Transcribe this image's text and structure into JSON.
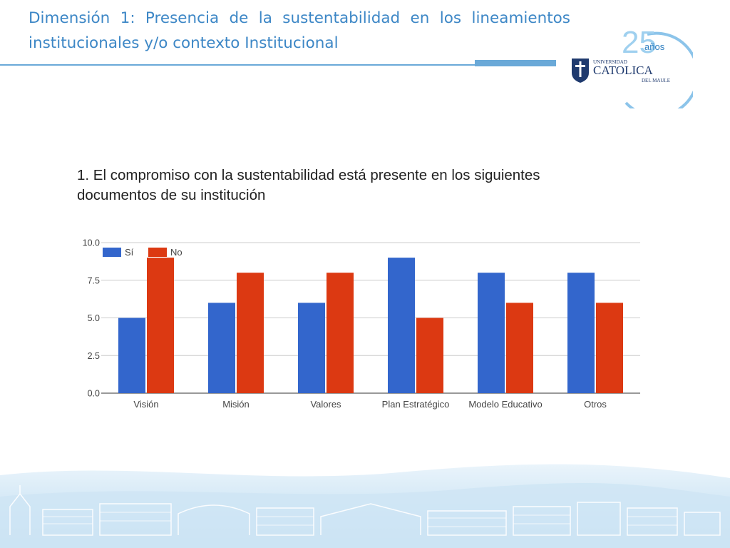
{
  "slide": {
    "title": "Dimensión 1: Presencia de la sustentabilidad en los lineamientos institucionales y/o contexto Institucional"
  },
  "logo": {
    "anniversary_number": "25",
    "anniversary_word": "años",
    "line1": "UNIVERSIDAD",
    "line2": "CATOLICA",
    "line3": "DEL MAULE"
  },
  "chart_data": {
    "type": "bar",
    "title": "1. El compromiso con la sustentabilidad está presente en los siguientes documentos de su institución",
    "categories": [
      "Visión",
      "Misión",
      "Valores",
      "Plan Estratégico",
      "Modelo Educativo",
      "Otros"
    ],
    "series": [
      {
        "name": "Sí",
        "color": "#3366cc",
        "values": [
          5,
          6,
          6,
          9,
          8,
          8
        ]
      },
      {
        "name": "No",
        "color": "#dc3912",
        "values": [
          9,
          8,
          8,
          5,
          6,
          6
        ]
      }
    ],
    "xlabel": "",
    "ylabel": "",
    "ylim": [
      0,
      10
    ],
    "yticks": [
      "0.0",
      "2.5",
      "5.0",
      "7.5",
      "10.0"
    ],
    "grid": true,
    "legend": "top-left"
  }
}
